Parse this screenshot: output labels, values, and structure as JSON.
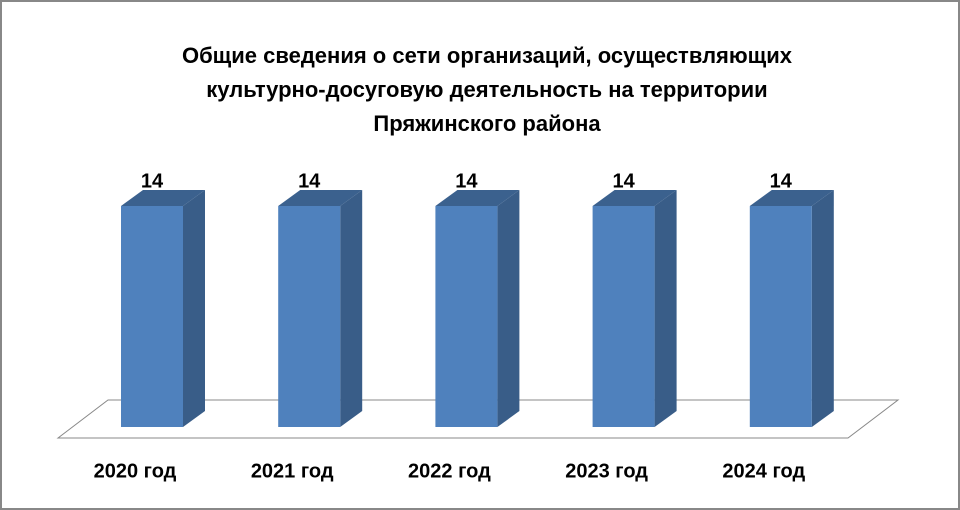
{
  "chart_data": {
    "type": "bar3d",
    "title": [
      "Общие сведения о сети организаций, осуществляющих",
      "культурно-досуговую деятельность на территории",
      "Пряжинского района"
    ],
    "categories": [
      "2020 год",
      "2021 год",
      "2022 год",
      "2023 год",
      "2024 год"
    ],
    "values": [
      14,
      14,
      14,
      14,
      14
    ],
    "color": "#4f81bd"
  }
}
